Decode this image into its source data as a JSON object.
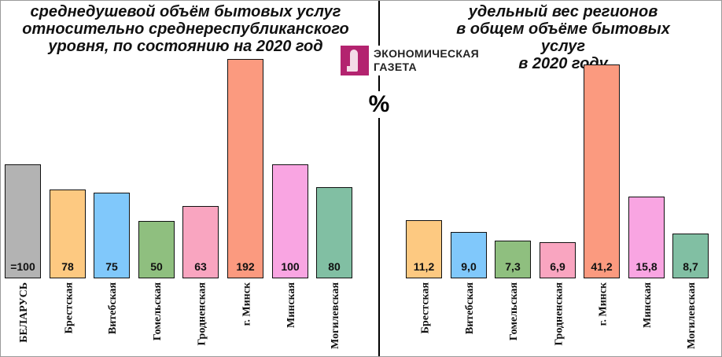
{
  "left_title": [
    "среднедушевой объём бытовых услуг",
    "относительно среднереспубликанского",
    "уровня, по состоянию на 2020 год"
  ],
  "right_title": [
    "удельный вес регионов",
    "в общем объёме бытовых услуг",
    "в 2020 году"
  ],
  "logo": {
    "line1": "ЭКОНОМИЧЕСКАЯ",
    "line2": "ГАЗЕТА",
    "icon": "newspaper-figure-icon",
    "color": "#b3236f"
  },
  "unit": "%",
  "chart_data": [
    {
      "type": "bar",
      "title": "среднедушевой объём бытовых услуг относительно среднереспубликанского уровня, по состоянию на 2020 год",
      "categories": [
        "БЕЛАРУСЬ",
        "Брестская",
        "Витебская",
        "Гомельская",
        "Гродненская",
        "г. Минск",
        "Минская",
        "Могилевская"
      ],
      "values": [
        100,
        78,
        75,
        50,
        63,
        192,
        100,
        80
      ],
      "labels": [
        "=100",
        "78",
        "75",
        "50",
        "63",
        "192",
        "100",
        "80"
      ],
      "colors": [
        "#b3b3b3",
        "#fdc981",
        "#80c8fb",
        "#8fbf7f",
        "#f9a5c0",
        "#fb9a7f",
        "#f9a5e2",
        "#81bfa3"
      ],
      "ylabel": "%",
      "grid": false,
      "legend": "none"
    },
    {
      "type": "bar",
      "title": "удельный вес регионов в общем объёме бытовых услуг в 2020 году",
      "categories": [
        "Брестская",
        "Витебская",
        "Гомельская",
        "Гродненская",
        "г. Минск",
        "Минская",
        "Могилевская"
      ],
      "values": [
        11.2,
        9.0,
        7.3,
        6.9,
        41.2,
        15.8,
        8.7
      ],
      "labels": [
        "11,2",
        "9,0",
        "7,3",
        "6,9",
        "41,2",
        "15,8",
        "8,7"
      ],
      "colors": [
        "#fdc981",
        "#80c8fb",
        "#8fbf7f",
        "#f9a5c0",
        "#fb9a7f",
        "#f9a5e2",
        "#81bfa3"
      ],
      "ylabel": "%",
      "grid": false,
      "legend": "none"
    }
  ]
}
